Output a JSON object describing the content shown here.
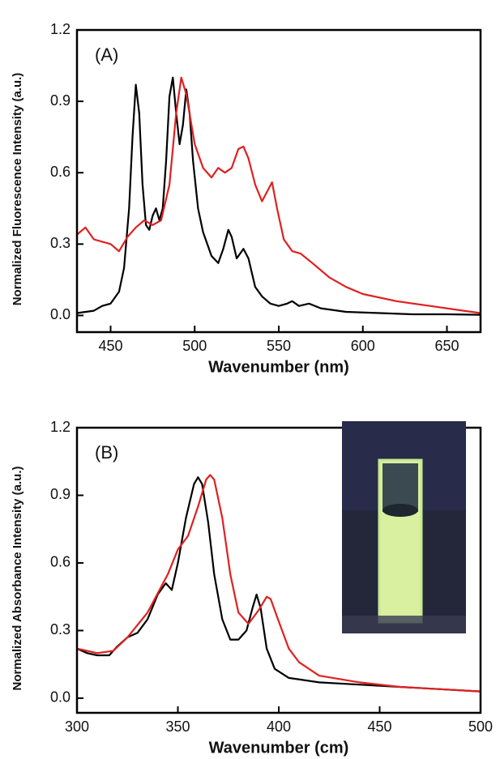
{
  "chart_data": [
    {
      "type": "line",
      "annotation": "(A)",
      "x_label": "Wavenumber (nm)",
      "y_label": "Normalized Fluorescence Intensity (a.u.)",
      "xlim": [
        430,
        670
      ],
      "xticks": [
        450,
        500,
        550,
        600,
        650
      ],
      "ylim": [
        -0.07,
        1.2
      ],
      "yticks": [
        {
          "value": 0,
          "label": "0.0"
        },
        0.3,
        0.6,
        0.9,
        1.2
      ],
      "series": [
        {
          "color": "#000000",
          "x": [
            430,
            440,
            445,
            450,
            455,
            458,
            461,
            463,
            465,
            467,
            469,
            471,
            473,
            475,
            477,
            479,
            481,
            483,
            485,
            487,
            489,
            491,
            493,
            495,
            497,
            499,
            502,
            505,
            510,
            514,
            517,
            520,
            522,
            525,
            529,
            532,
            536,
            540,
            545,
            550,
            555,
            558,
            562,
            568,
            575,
            590,
            610,
            630,
            650,
            670
          ],
          "values": [
            0.01,
            0.02,
            0.04,
            0.05,
            0.1,
            0.2,
            0.45,
            0.75,
            0.97,
            0.85,
            0.55,
            0.38,
            0.36,
            0.42,
            0.45,
            0.4,
            0.45,
            0.65,
            0.92,
            1.0,
            0.85,
            0.72,
            0.8,
            0.95,
            0.85,
            0.65,
            0.45,
            0.35,
            0.25,
            0.22,
            0.28,
            0.36,
            0.33,
            0.24,
            0.28,
            0.24,
            0.12,
            0.08,
            0.05,
            0.04,
            0.05,
            0.06,
            0.04,
            0.05,
            0.03,
            0.015,
            0.01,
            0.005,
            0.005,
            0.003
          ]
        },
        {
          "color": "#e02020",
          "x": [
            430,
            435,
            440,
            445,
            450,
            455,
            460,
            465,
            470,
            475,
            480,
            485,
            489,
            492,
            495,
            500,
            505,
            510,
            514,
            518,
            522,
            526,
            529,
            532,
            536,
            540,
            543,
            546,
            549,
            553,
            558,
            563,
            570,
            580,
            590,
            600,
            620,
            640,
            660,
            670
          ],
          "values": [
            0.34,
            0.37,
            0.32,
            0.31,
            0.3,
            0.27,
            0.33,
            0.37,
            0.4,
            0.38,
            0.4,
            0.55,
            0.85,
            1.0,
            0.93,
            0.72,
            0.62,
            0.58,
            0.62,
            0.6,
            0.62,
            0.7,
            0.71,
            0.66,
            0.55,
            0.48,
            0.52,
            0.56,
            0.45,
            0.32,
            0.27,
            0.26,
            0.22,
            0.16,
            0.12,
            0.09,
            0.06,
            0.04,
            0.02,
            0.01
          ]
        }
      ]
    },
    {
      "type": "line",
      "annotation": "(B)",
      "x_label": "Wavenumber (cm)",
      "y_label": "Normalized Absorbance Intensity (a.u.)",
      "xlim": [
        300,
        500
      ],
      "xticks": [
        300,
        350,
        400,
        450,
        500
      ],
      "ylim": [
        -0.065,
        1.2
      ],
      "yticks": [
        {
          "value": 0,
          "label": "0.0"
        },
        0.3,
        0.6,
        0.9,
        1.2
      ],
      "series": [
        {
          "color": "#000000",
          "x": [
            300,
            305,
            310,
            316,
            320,
            325,
            330,
            335,
            340,
            344,
            347,
            350,
            354,
            358,
            360,
            362,
            365,
            368,
            372,
            376,
            380,
            384,
            387,
            389,
            391,
            394,
            398,
            405,
            420,
            440,
            460,
            480,
            500
          ],
          "values": [
            0.22,
            0.2,
            0.19,
            0.19,
            0.23,
            0.27,
            0.29,
            0.35,
            0.46,
            0.51,
            0.48,
            0.6,
            0.8,
            0.95,
            0.98,
            0.95,
            0.78,
            0.55,
            0.35,
            0.26,
            0.26,
            0.3,
            0.4,
            0.46,
            0.4,
            0.22,
            0.13,
            0.09,
            0.07,
            0.06,
            0.05,
            0.04,
            0.03
          ]
        },
        {
          "color": "#e02020",
          "x": [
            300,
            305,
            310,
            318,
            325,
            335,
            345,
            350,
            355,
            360,
            364,
            366,
            368,
            372,
            376,
            380,
            385,
            390,
            394,
            396,
            400,
            405,
            410,
            420,
            440,
            460,
            480,
            500
          ],
          "values": [
            0.22,
            0.21,
            0.2,
            0.21,
            0.27,
            0.38,
            0.55,
            0.66,
            0.72,
            0.85,
            0.97,
            0.99,
            0.97,
            0.8,
            0.55,
            0.38,
            0.33,
            0.39,
            0.45,
            0.44,
            0.34,
            0.22,
            0.16,
            0.1,
            0.07,
            0.05,
            0.04,
            0.03
          ]
        }
      ]
    }
  ]
}
